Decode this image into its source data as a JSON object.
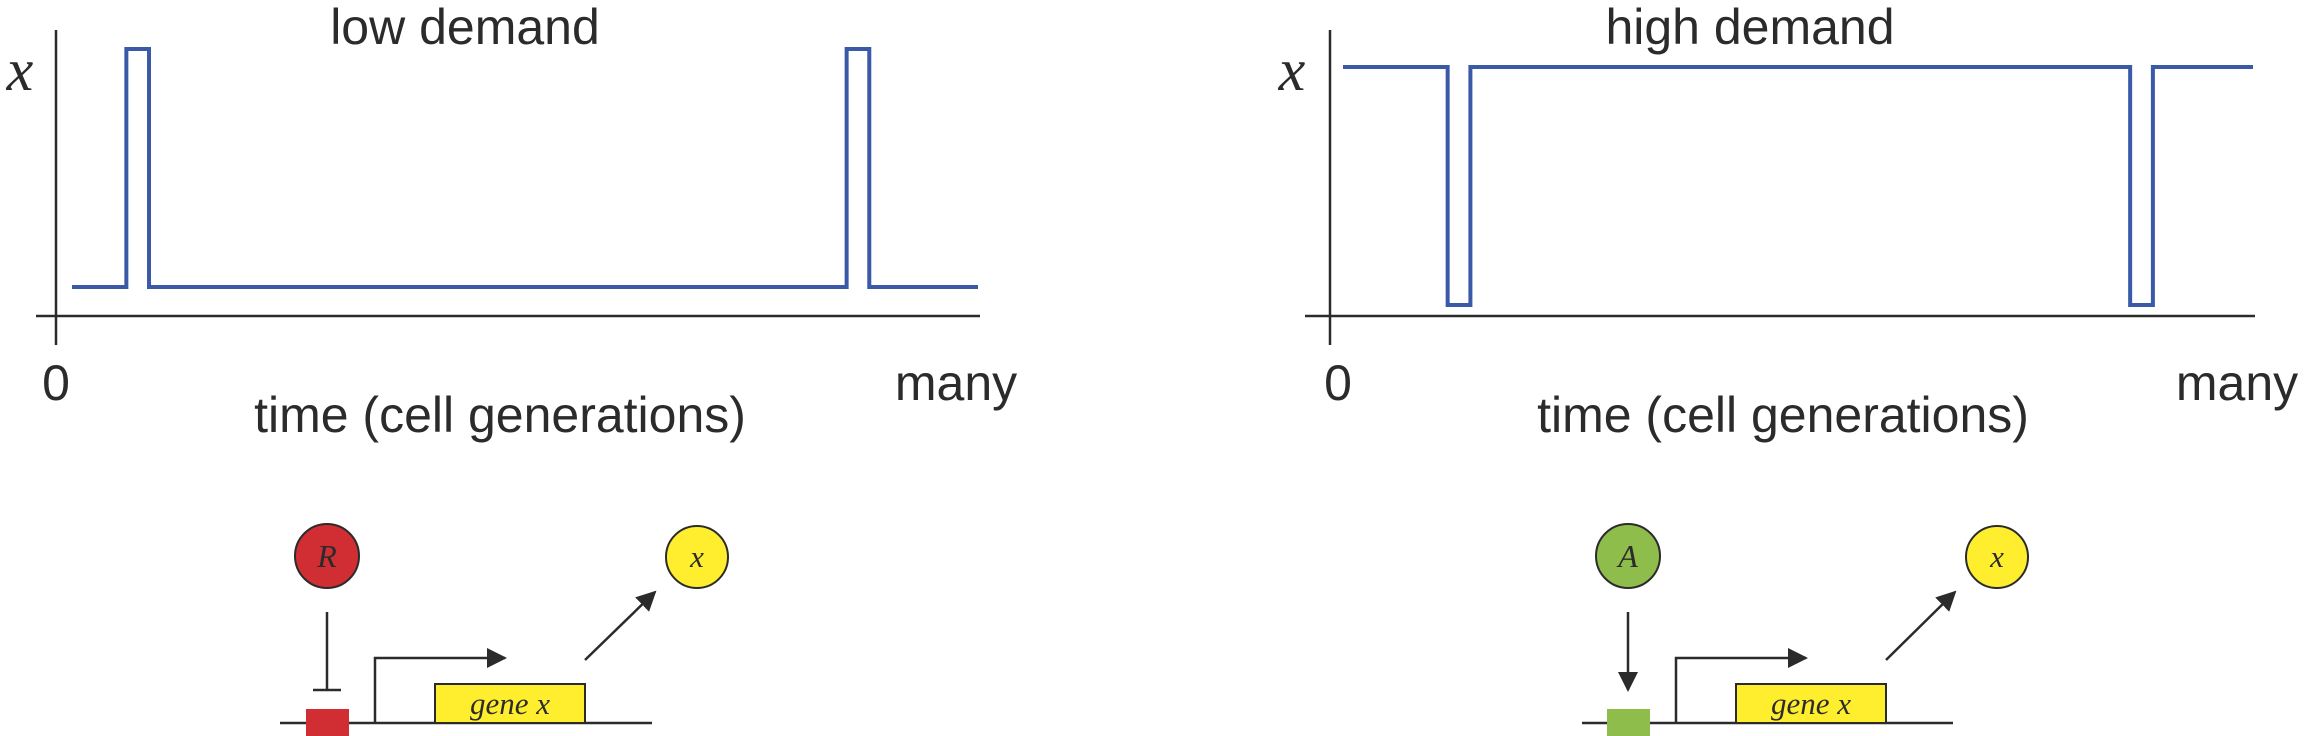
{
  "panels": [
    {
      "id": "left",
      "title": "low demand",
      "y_label": "x",
      "x_start": "0",
      "x_end": "many",
      "x_label": "time (cell generations)",
      "series": [
        {
          "t": 0.0,
          "level": "low"
        },
        {
          "t": 0.06,
          "level": "high"
        },
        {
          "t": 0.085,
          "level": "low"
        },
        {
          "t": 0.855,
          "level": "high"
        },
        {
          "t": 0.88,
          "level": "low"
        },
        {
          "t": 1.0,
          "level": "low"
        }
      ],
      "regulator": {
        "letter": "R",
        "type": "repressor",
        "color": "#d12e33"
      },
      "gene_label": "gene x",
      "product": {
        "letter": "x",
        "color": "#ffee2e"
      },
      "site_color": "#d12e33"
    },
    {
      "id": "right",
      "title": "high demand",
      "y_label": "x",
      "x_start": "0",
      "x_end": "many",
      "x_label": "time (cell generations)",
      "series": [
        {
          "t": 0.0,
          "level": "high"
        },
        {
          "t": 0.115,
          "level": "low"
        },
        {
          "t": 0.14,
          "level": "high"
        },
        {
          "t": 0.865,
          "level": "low"
        },
        {
          "t": 0.89,
          "level": "high"
        },
        {
          "t": 1.0,
          "level": "high"
        }
      ],
      "regulator": {
        "letter": "A",
        "type": "activator",
        "color": "#8fbd4c"
      },
      "gene_label": "gene x",
      "product": {
        "letter": "x",
        "color": "#ffee2e"
      },
      "site_color": "#8fbd4c"
    }
  ],
  "colors": {
    "trace": "#3a5aa8",
    "gene_box": "#ffee2e",
    "ink": "#2b2b2b"
  }
}
